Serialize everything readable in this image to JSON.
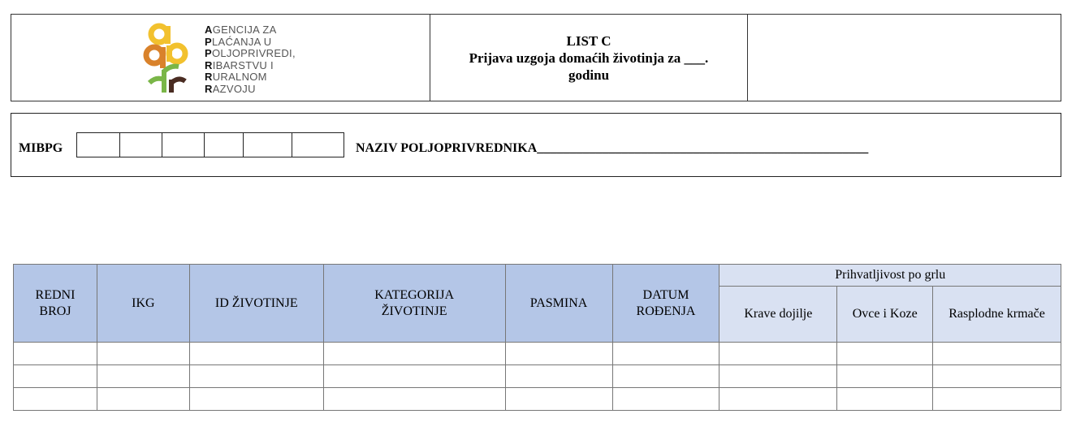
{
  "logo": {
    "lines": [
      {
        "initial": "A",
        "rest": "GENCIJA ZA"
      },
      {
        "initial": "P",
        "rest": "LAĆANJA U"
      },
      {
        "initial": "P",
        "rest": "OLJOPRIVREDI,"
      },
      {
        "initial": "R",
        "rest": "IBARSTVU I"
      },
      {
        "initial": "R",
        "rest": "URALNOM"
      },
      {
        "initial": "R",
        "rest": "AZVOJU"
      }
    ],
    "colors": {
      "yellow": "#f2c12e",
      "orange": "#d9822b",
      "green": "#7ab648",
      "brown": "#4a2c22"
    }
  },
  "header": {
    "title_line1": "LIST C",
    "title_line2": "Prijava uzgoja domaćih životinja za ___.",
    "title_line3": "godinu"
  },
  "id_section": {
    "mibpg_label": "MIBPG",
    "naziv_label": "NAZIV POLJOPRIVREDNIKA___________________________________________________"
  },
  "table": {
    "columns": [
      "REDNI BROJ",
      "IKG",
      "ID ŽIVOTINJE",
      "KATEGORIJA ŽIVOTINJE",
      "PASMINA",
      "DATUM ROĐENJA"
    ],
    "group_header": "Prihvatljivost po grlu",
    "sub_columns": [
      "Krave dojilje",
      "Ovce i Koze",
      "Rasplodne krmače"
    ],
    "rows": [
      [
        "",
        "",
        "",
        "",
        "",
        "",
        "",
        "",
        ""
      ],
      [
        "",
        "",
        "",
        "",
        "",
        "",
        "",
        "",
        ""
      ],
      [
        "",
        "",
        "",
        "",
        "",
        "",
        "",
        "",
        ""
      ]
    ],
    "header_color": "#b4c6e7",
    "subheader_color": "#d9e1f2"
  }
}
